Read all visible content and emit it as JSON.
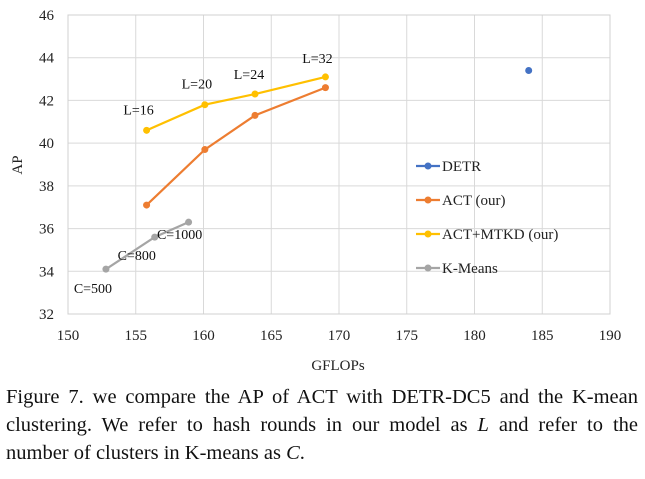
{
  "chart_data": {
    "type": "line",
    "xlabel": "GFLOPs",
    "ylabel": "AP",
    "xlim": [
      150,
      190
    ],
    "ylim": [
      32,
      46
    ],
    "xticks": [
      150,
      155,
      160,
      165,
      170,
      175,
      180,
      185,
      190
    ],
    "yticks": [
      32,
      34,
      36,
      38,
      40,
      42,
      44,
      46
    ],
    "grid": "vertical and horizontal",
    "legend_position": "right",
    "series": [
      {
        "name": "DETR",
        "color": "#4472c4",
        "points": [
          {
            "x": 184,
            "y": 43.4
          }
        ]
      },
      {
        "name": "ACT (our)",
        "color": "#ed7d31",
        "points": [
          {
            "x": 155.8,
            "y": 37.1
          },
          {
            "x": 160.1,
            "y": 39.7
          },
          {
            "x": 163.8,
            "y": 41.3
          },
          {
            "x": 169.0,
            "y": 42.6
          }
        ]
      },
      {
        "name": "ACT+MTKD (our)",
        "color": "#ffc000",
        "points": [
          {
            "x": 155.8,
            "y": 40.6,
            "label": "L=16"
          },
          {
            "x": 160.1,
            "y": 41.8,
            "label": "L=20"
          },
          {
            "x": 163.8,
            "y": 42.3,
            "label": "L=24"
          },
          {
            "x": 169.0,
            "y": 43.1,
            "label": "L=32"
          }
        ]
      },
      {
        "name": "K-Means",
        "color": "#a5a5a5",
        "points": [
          {
            "x": 152.8,
            "y": 34.1,
            "label": "C=500"
          },
          {
            "x": 156.4,
            "y": 35.6,
            "label": "C=800"
          },
          {
            "x": 158.9,
            "y": 36.3,
            "label": "C=1000"
          }
        ]
      }
    ]
  },
  "caption": {
    "part1": "Figure 7. we compare the AP of ACT with DETR-DC5 and the K-mean clustering. We refer to hash rounds in our model as ",
    "var1": "L",
    "part2": " and refer to the number of clusters in K-means as ",
    "var2": "C",
    "part3": "."
  }
}
